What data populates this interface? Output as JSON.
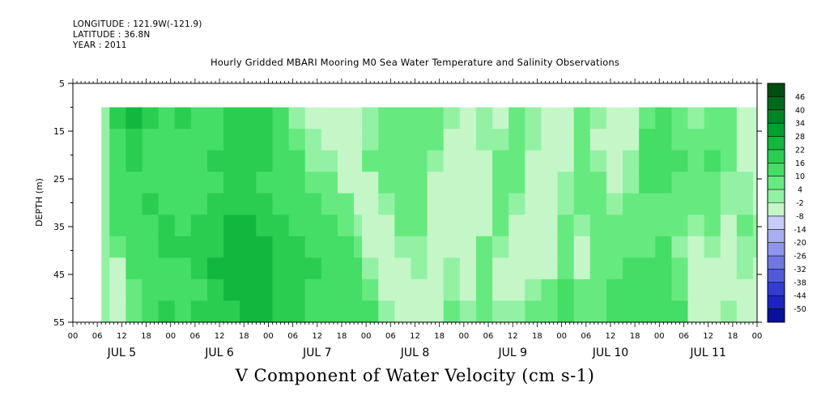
{
  "header": {
    "longitude": "LONGITUDE : 121.9W(-121.9)",
    "latitude": "LATITUDE : 36.8N",
    "year": "YEAR : 2011"
  },
  "chart_data": {
    "type": "heatmap",
    "title": "Hourly Gridded MBARI Mooring M0 Sea Water Temperature and Salinity Observations",
    "xlabel": "V Component of Water Velocity (cm s-1)",
    "ylabel": "DEPTH (m)",
    "y_ticks": [
      5,
      15,
      25,
      35,
      45,
      55
    ],
    "ylim": [
      55,
      5
    ],
    "x_hour_ticks": [
      "00",
      "06",
      "12",
      "18",
      "00",
      "06",
      "12",
      "18",
      "00",
      "06",
      "12",
      "18",
      "00",
      "06",
      "12",
      "18",
      "00",
      "06",
      "12",
      "18",
      "00",
      "06",
      "12",
      "18",
      "00",
      "06",
      "12",
      "18",
      "00"
    ],
    "x_day_labels": [
      "JUL  5",
      "JUL  6",
      "JUL  7",
      "JUL  8",
      "JUL  9",
      "JUL 10",
      "JUL 11"
    ],
    "data_depth_range": [
      10,
      55
    ],
    "data_time_range_hours": [
      7,
      168
    ],
    "colorbar_levels": [
      46,
      40,
      34,
      28,
      22,
      16,
      10,
      4,
      -2,
      -8,
      -14,
      -20,
      -26,
      -32,
      -38,
      -44,
      -50
    ],
    "colorbar_colors": [
      "#004d12",
      "#006a1c",
      "#008526",
      "#00a02f",
      "#12b83e",
      "#2acd50",
      "#44dd65",
      "#66ea7f",
      "#93f1a4",
      "#c4f6c8",
      "#c7cbf8",
      "#a9aef2",
      "#8f95ec",
      "#7077e4",
      "#5159db",
      "#333bd2",
      "#1c23c2",
      "#0a0f9c"
    ],
    "columns": [
      {
        "t": 7.0,
        "v": [
          0,
          0,
          0,
          0,
          0,
          0,
          0,
          0,
          0,
          0
        ]
      },
      {
        "t": 9.0,
        "v": [
          16,
          14,
          12,
          12,
          10,
          10,
          8,
          -4,
          -6,
          -6
        ]
      },
      {
        "t": 13.0,
        "v": [
          22,
          20,
          16,
          14,
          14,
          12,
          10,
          10,
          8,
          8
        ]
      },
      {
        "t": 17.0,
        "v": [
          18,
          14,
          10,
          12,
          16,
          12,
          14,
          12,
          12,
          14
        ]
      },
      {
        "t": 21.0,
        "v": [
          14,
          12,
          10,
          10,
          14,
          18,
          18,
          14,
          14,
          16
        ]
      },
      {
        "t": 25.0,
        "v": [
          16,
          14,
          12,
          12,
          14,
          14,
          16,
          14,
          12,
          12
        ]
      },
      {
        "t": 29.0,
        "v": [
          12,
          14,
          12,
          10,
          14,
          16,
          18,
          16,
          14,
          16
        ]
      },
      {
        "t": 33.0,
        "v": [
          14,
          14,
          16,
          14,
          16,
          18,
          20,
          22,
          20,
          18
        ]
      },
      {
        "t": 37.0,
        "v": [
          16,
          18,
          16,
          18,
          20,
          22,
          24,
          24,
          22,
          20
        ]
      },
      {
        "t": 41.0,
        "v": [
          18,
          16,
          18,
          20,
          18,
          22,
          26,
          26,
          24,
          22
        ]
      },
      {
        "t": 45.0,
        "v": [
          16,
          16,
          16,
          14,
          16,
          18,
          22,
          24,
          24,
          22
        ]
      },
      {
        "t": 49.0,
        "v": [
          14,
          12,
          12,
          12,
          14,
          16,
          18,
          20,
          20,
          20
        ]
      },
      {
        "t": 53.0,
        "v": [
          -2,
          6,
          10,
          10,
          12,
          14,
          16,
          18,
          18,
          16
        ]
      },
      {
        "t": 57.0,
        "v": [
          -4,
          -2,
          2,
          8,
          10,
          12,
          14,
          16,
          14,
          14
        ]
      },
      {
        "t": 61.0,
        "v": [
          -6,
          -4,
          2,
          6,
          8,
          10,
          12,
          12,
          12,
          12
        ]
      },
      {
        "t": 65.0,
        "v": [
          -8,
          -6,
          -6,
          -4,
          4,
          8,
          10,
          12,
          14,
          14
        ]
      },
      {
        "t": 69.0,
        "v": [
          -6,
          -6,
          -8,
          -6,
          -4,
          2,
          8,
          10,
          12,
          14
        ]
      },
      {
        "t": 71.0,
        "v": [
          2,
          2,
          4,
          -4,
          -6,
          -6,
          -4,
          2,
          8,
          10
        ]
      },
      {
        "t": 75.0,
        "v": [
          6,
          8,
          8,
          6,
          -2,
          -4,
          -6,
          -6,
          -4,
          -2
        ]
      },
      {
        "t": 79.0,
        "v": [
          4,
          6,
          6,
          4,
          6,
          4,
          2,
          -4,
          -6,
          -6
        ]
      },
      {
        "t": 83.0,
        "v": [
          8,
          6,
          4,
          4,
          6,
          4,
          2,
          0,
          -4,
          -4
        ]
      },
      {
        "t": 87.0,
        "v": [
          6,
          4,
          -2,
          -4,
          -4,
          -6,
          -4,
          -6,
          -4,
          -6
        ]
      },
      {
        "t": 91.0,
        "v": [
          -2,
          -4,
          -6,
          -6,
          -8,
          -6,
          -4,
          -2,
          2,
          4
        ]
      },
      {
        "t": 95.0,
        "v": [
          -4,
          -6,
          -8,
          -8,
          -6,
          -8,
          -6,
          -6,
          -4,
          -2
        ]
      },
      {
        "t": 99.0,
        "v": [
          -2,
          -2,
          -4,
          -6,
          -6,
          -6,
          4,
          6,
          6,
          4
        ]
      },
      {
        "t": 103.0,
        "v": [
          -4,
          2,
          4,
          4,
          6,
          6,
          2,
          -4,
          -4,
          -2
        ]
      },
      {
        "t": 107.0,
        "v": [
          6,
          6,
          8,
          4,
          -2,
          -4,
          -6,
          -6,
          -4,
          -2
        ]
      },
      {
        "t": 111.0,
        "v": [
          2,
          -2,
          -4,
          -6,
          -6,
          -8,
          -6,
          -4,
          2,
          6
        ]
      },
      {
        "t": 115.0,
        "v": [
          -6,
          -8,
          -8,
          -6,
          -8,
          -6,
          -6,
          -4,
          4,
          8
        ]
      },
      {
        "t": 119.0,
        "v": [
          -6,
          -6,
          -4,
          -2,
          2,
          4,
          6,
          8,
          10,
          10
        ]
      },
      {
        "t": 123.0,
        "v": [
          4,
          6,
          8,
          6,
          4,
          2,
          -4,
          -6,
          4,
          6
        ]
      },
      {
        "t": 127.0,
        "v": [
          -2,
          -4,
          2,
          4,
          6,
          8,
          8,
          6,
          6,
          8
        ]
      },
      {
        "t": 131.0,
        "v": [
          -6,
          -6,
          -6,
          -4,
          -2,
          4,
          6,
          8,
          10,
          10
        ]
      },
      {
        "t": 135.0,
        "v": [
          -4,
          -4,
          -2,
          2,
          4,
          6,
          8,
          10,
          10,
          12
        ]
      },
      {
        "t": 139.0,
        "v": [
          8,
          10,
          12,
          10,
          8,
          6,
          8,
          10,
          12,
          14
        ]
      },
      {
        "t": 143.0,
        "v": [
          10,
          12,
          12,
          10,
          8,
          8,
          10,
          12,
          12,
          12
        ]
      },
      {
        "t": 147.0,
        "v": [
          6,
          8,
          10,
          8,
          6,
          4,
          2,
          6,
          8,
          10
        ]
      },
      {
        "t": 151.0,
        "v": [
          2,
          4,
          6,
          6,
          4,
          2,
          -4,
          -6,
          -6,
          -4
        ]
      },
      {
        "t": 155.0,
        "v": [
          6,
          8,
          10,
          8,
          6,
          4,
          -2,
          -6,
          -6,
          -6
        ]
      },
      {
        "t": 159.0,
        "v": [
          4,
          6,
          4,
          2,
          -2,
          -4,
          -6,
          -6,
          -4,
          -2
        ]
      },
      {
        "t": 163.0,
        "v": [
          -6,
          -6,
          -4,
          -2,
          2,
          4,
          2,
          -2,
          -6,
          -6
        ]
      },
      {
        "t": 167.0,
        "v": [
          -6,
          -6,
          -6,
          -4,
          -4,
          -2,
          -2,
          -4,
          -6,
          -8
        ]
      }
    ]
  }
}
